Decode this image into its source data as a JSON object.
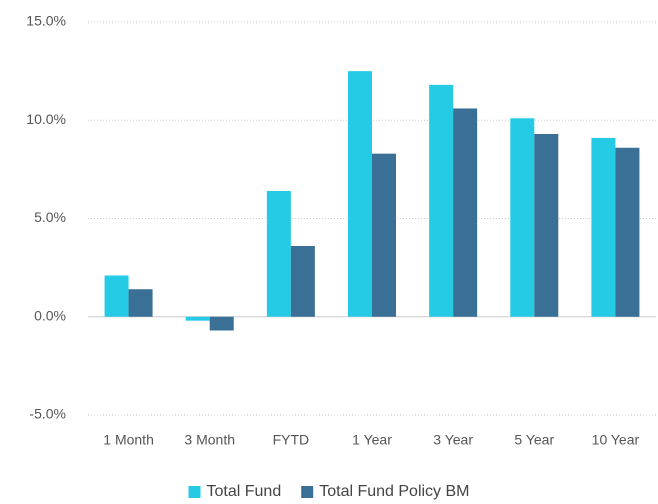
{
  "chart_data": {
    "type": "bar",
    "categories": [
      "1 Month",
      "3 Month",
      "FYTD",
      "1 Year",
      "3 Year",
      "5 Year",
      "10 Year"
    ],
    "series": [
      {
        "name": "Total Fund",
        "color": "#25cbe4",
        "values": [
          2.1,
          -0.2,
          6.4,
          12.5,
          11.8,
          10.1,
          9.1
        ]
      },
      {
        "name": "Total Fund Policy BM",
        "color": "#3a6f96",
        "values": [
          1.4,
          -0.7,
          3.6,
          8.3,
          10.6,
          9.3,
          8.6
        ]
      }
    ],
    "ylim": [
      -5,
      15
    ],
    "yticks": [
      {
        "value": -5,
        "label": "-5.0%"
      },
      {
        "value": 0,
        "label": "0.0%"
      },
      {
        "value": 5,
        "label": "5.0%"
      },
      {
        "value": 10,
        "label": "10.0%"
      },
      {
        "value": 15,
        "label": "15.0%"
      }
    ],
    "grid": true,
    "legend": "bottom"
  }
}
